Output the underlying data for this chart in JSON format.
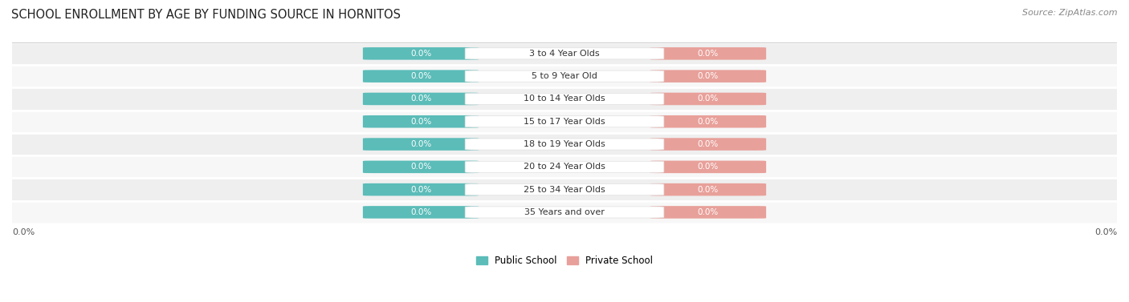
{
  "title": "SCHOOL ENROLLMENT BY AGE BY FUNDING SOURCE IN HORNITOS",
  "source": "Source: ZipAtlas.com",
  "categories": [
    "3 to 4 Year Olds",
    "5 to 9 Year Old",
    "10 to 14 Year Olds",
    "15 to 17 Year Olds",
    "18 to 19 Year Olds",
    "20 to 24 Year Olds",
    "25 to 34 Year Olds",
    "35 Years and over"
  ],
  "public_values": [
    0.0,
    0.0,
    0.0,
    0.0,
    0.0,
    0.0,
    0.0,
    0.0
  ],
  "private_values": [
    0.0,
    0.0,
    0.0,
    0.0,
    0.0,
    0.0,
    0.0,
    0.0
  ],
  "public_color": "#5bbcb8",
  "private_color": "#e8a09a",
  "row_bg_light": "#f7f7f7",
  "row_bg_dark": "#efefef",
  "title_fontsize": 10.5,
  "bar_fontsize": 7.5,
  "cat_fontsize": 8.0,
  "legend_public": "Public School",
  "legend_private": "Private School",
  "axis_label_left": "0.0%",
  "axis_label_right": "0.0%",
  "text_color_dark": "#333333",
  "text_color_white": "#ffffff"
}
